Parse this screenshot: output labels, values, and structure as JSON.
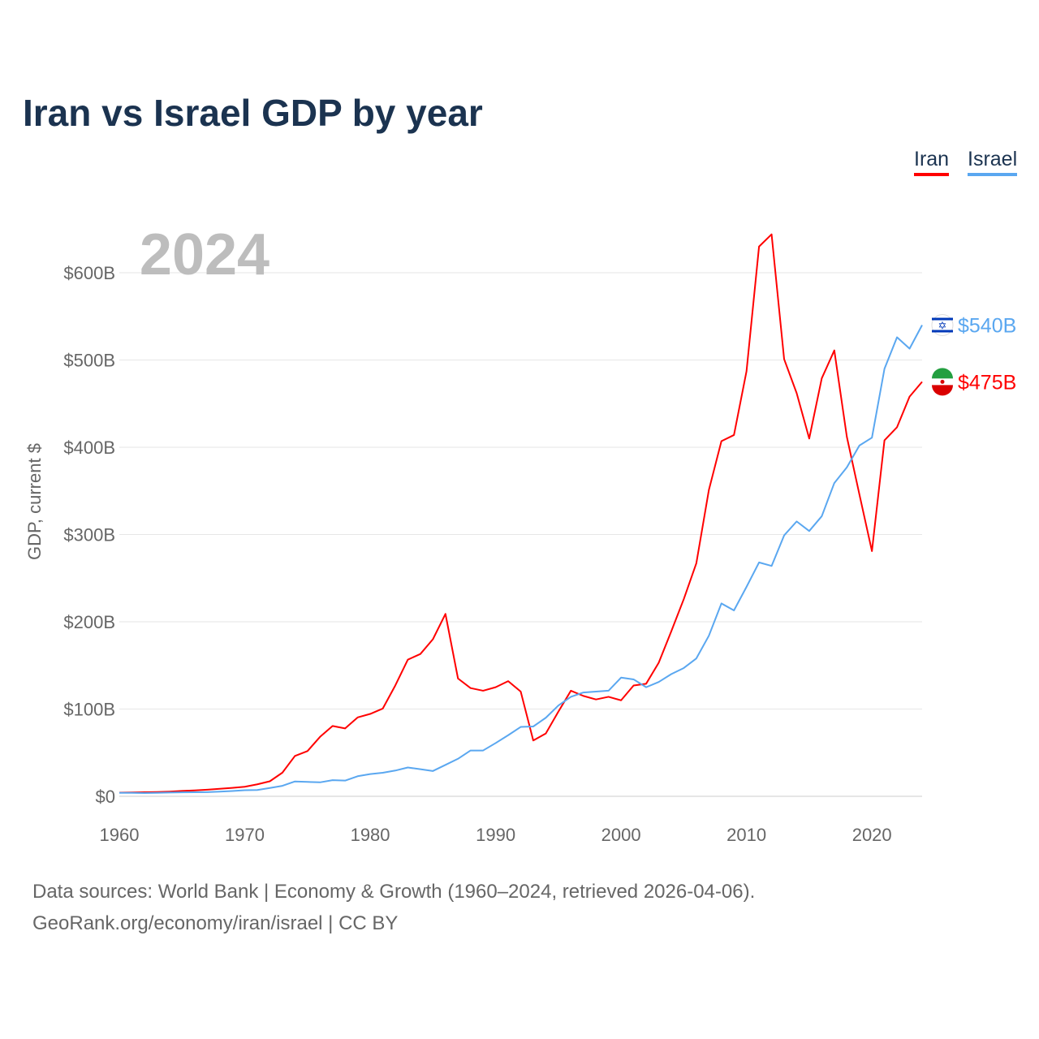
{
  "title": "Iran vs Israel GDP by year",
  "year_label": "2024",
  "footer": {
    "line1": "Data sources: World Bank | Economy & Growth (1960–2024, retrieved 2026-04-06).",
    "line2": "GeoRank.org/economy/iran/israel | CC BY"
  },
  "chart_data": {
    "type": "line",
    "title": "Iran vs Israel GDP by year",
    "xlabel": "",
    "ylabel": "GDP, current $",
    "xlim": [
      1960,
      2024
    ],
    "ylim": [
      0,
      650
    ],
    "x_ticks": [
      "1960",
      "1970",
      "1980",
      "1990",
      "2000",
      "2010",
      "2020"
    ],
    "y_ticks": [
      {
        "v": 0,
        "label": "$0"
      },
      {
        "v": 100,
        "label": "$100B"
      },
      {
        "v": 200,
        "label": "$200B"
      },
      {
        "v": 300,
        "label": "$300B"
      },
      {
        "v": 400,
        "label": "$400B"
      },
      {
        "v": 500,
        "label": "$500B"
      },
      {
        "v": 600,
        "label": "$600B"
      }
    ],
    "grid": true,
    "legend_position": "top-right",
    "x": [
      1960,
      1961,
      1962,
      1963,
      1964,
      1965,
      1966,
      1967,
      1968,
      1969,
      1970,
      1971,
      1972,
      1973,
      1974,
      1975,
      1976,
      1977,
      1978,
      1979,
      1980,
      1981,
      1982,
      1983,
      1984,
      1985,
      1986,
      1987,
      1988,
      1989,
      1990,
      1991,
      1992,
      1993,
      1994,
      1995,
      1996,
      1997,
      1998,
      1999,
      2000,
      2001,
      2002,
      2003,
      2004,
      2005,
      2006,
      2007,
      2008,
      2009,
      2010,
      2011,
      2012,
      2013,
      2014,
      2015,
      2016,
      2017,
      2018,
      2019,
      2020,
      2021,
      2022,
      2023,
      2024
    ],
    "series": [
      {
        "name": "Iran",
        "color": "#ff0000",
        "end_label": "$475B",
        "flag": "iran-flag-icon",
        "values": [
          4.2,
          4.4,
          4.7,
          4.9,
          5.4,
          6.2,
          6.8,
          7.6,
          8.6,
          9.6,
          10.9,
          13.7,
          17.2,
          27.1,
          46.2,
          51.8,
          68.1,
          80.6,
          77.8,
          90.4,
          94.4,
          100.5,
          127.0,
          156.6,
          163.1,
          180.0,
          209.0,
          135.0,
          124.0,
          121.0,
          125.0,
          132.0,
          120.0,
          64.0,
          72.0,
          97.0,
          121.0,
          115.0,
          111.0,
          114.0,
          110.0,
          127.0,
          129.0,
          153.0,
          189.0,
          226.0,
          267.0,
          351.0,
          407.0,
          414.0,
          487.0,
          630.0,
          644.0,
          501.0,
          462.0,
          410.0,
          479.0,
          511.0,
          412.0,
          346.0,
          281.0,
          408.0,
          423.0,
          458.0,
          475.0
        ]
      },
      {
        "name": "Israel",
        "color": "#5aa7f0",
        "end_label": "$540B",
        "flag": "israel-flag-icon",
        "values": [
          3.9,
          4.0,
          3.7,
          3.9,
          4.3,
          4.5,
          4.6,
          4.8,
          5.4,
          6.1,
          7.0,
          7.2,
          9.5,
          12.0,
          17.0,
          16.5,
          16.0,
          18.5,
          18.0,
          23.0,
          25.5,
          27.0,
          29.5,
          33.0,
          31.0,
          29.0,
          36.0,
          43.0,
          52.5,
          52.5,
          61.0,
          70.0,
          79.5,
          80.0,
          90.0,
          104.0,
          114.0,
          119.0,
          120.0,
          121.0,
          136.0,
          134.0,
          125.0,
          131.0,
          140.0,
          147.0,
          158.0,
          184.0,
          221.0,
          213.0,
          240.0,
          268.0,
          264.0,
          299.0,
          315.0,
          304.0,
          321.0,
          359.0,
          377.0,
          402.0,
          411.0,
          490.0,
          526.0,
          513.0,
          540.0
        ]
      }
    ]
  }
}
